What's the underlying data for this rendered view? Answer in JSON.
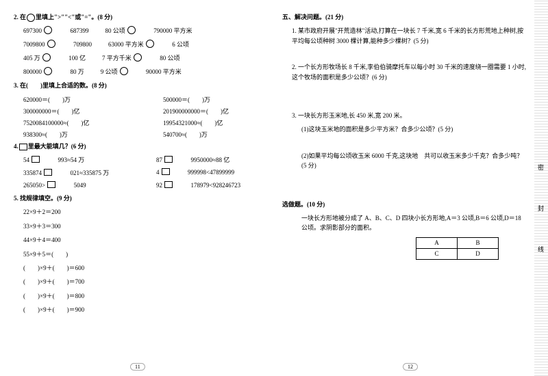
{
  "left": {
    "q2": {
      "title": "2. 在",
      "title2": "里填上\">\"\"<\"或\"=\"。(8 分)",
      "rows": [
        [
          "697300",
          "687399",
          "80 公顷",
          "790000 平方米"
        ],
        [
          "7009800",
          "709800",
          "63000 平方米",
          "6 公顷"
        ],
        [
          "405 万",
          "100 亿",
          "7 平方千米",
          "80 公顷"
        ],
        [
          "800000",
          "80 万",
          "9 公顷",
          "90000 平方米"
        ]
      ]
    },
    "q3": {
      "title": "3. 在(　　)里填上合适的数。(8 分)",
      "items": [
        "620000＝(　　)万",
        "500000＝(　　)万",
        "300000000＝(　　)亿",
        "201900000000＝(　　)亿",
        "7520084100000≈(　　)亿",
        "19954321000≈(　　)亿",
        "938300≈(　　)万",
        "540700≈(　　)万"
      ]
    },
    "q4": {
      "title": "4.",
      "title2": "里最大能填几？(6 分)",
      "items": [
        "54",
        "993≈54 万",
        "87",
        "9950000≈88 亿",
        "335874",
        "021≈335875 万",
        "4",
        "999998<47899999",
        "265050>",
        "5049",
        "92",
        "178979<928246723"
      ]
    },
    "q5": {
      "title": "5. 找规律填空。(9 分)",
      "items": [
        "22×9＋2＝200",
        "33×9＋3＝300",
        "44×9＋4＝400",
        "55×9＋5＝(　　)",
        "(　　)×9＋(　　)＝600",
        "(　　)×9＋(　　)＝700",
        "(　　)×9＋(　　)＝800",
        "(　　)×9＋(　　)＝900"
      ]
    }
  },
  "right": {
    "q6title": "五、解决问题。(21 分)",
    "q6_1": "1. 某市政府开展\"开荒造林\"活动,打算在一块长 7 千米,宽 6 千米的长方形荒地上种树,按平均每公顷种树 3000 棵计算,能种多少棵树？(5 分)",
    "q6_2": "2. 一个长方形牧场长 8 千米,李伯伯骑摩托车以每小时 30 千米的速度绕一圈需要 1 小时,这个牧场的面积是多少公顷？(6 分)",
    "q6_3": "3. 一块长方形玉米地,长 450 米,宽 200 米。",
    "q6_3a": "(1)这块玉米地的面积是多少平方米？合多少公顷？(5 分)",
    "q6_3b": "(2)如果平均每公顷收玉米 6000 千克,这块地　共可以收玉米多少千克？合多少吨？(5 分)",
    "bonus_t": "选做题。(10 分)",
    "bonus": "一块长方形地被分成了 A、B、C、D 四块小长方形地,A＝3 公顷,B＝6 公顷,D＝18 公顷。求阴影部分的面积。",
    "tbl": [
      [
        "A",
        "B"
      ],
      [
        "C",
        "D"
      ]
    ]
  },
  "page_left": "11",
  "page_right": "12",
  "side": [
    "密",
    "封",
    "线"
  ]
}
